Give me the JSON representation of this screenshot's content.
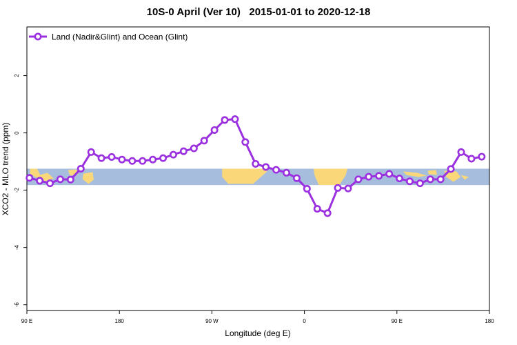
{
  "chart_data": {
    "type": "line",
    "title": "10S-0 April (Ver 10)   2015-01-01 to 2020-12-18",
    "xlabel": "Longitude (deg E)",
    "ylabel": "XCO2 - MLO trend (ppm)",
    "x_tick_labels": [
      "90 E",
      "180",
      "90 W",
      "0",
      "90 E",
      "180"
    ],
    "y_tick_labels": [
      "-6",
      "-4",
      "-2",
      "0",
      "2"
    ],
    "ylim": [
      -6.2,
      3.7
    ],
    "legend_position": "top-left",
    "grid": false,
    "colors": {
      "series": "#9b30e0",
      "ocean": "#a7bddd",
      "land": "#fad87a"
    },
    "series": [
      {
        "name": "Land (Nadir&Glint) and Ocean (Glint)",
        "x": [
          -267.5,
          -257.5,
          -247.5,
          -237.5,
          -227.5,
          -217.5,
          -207.5,
          -197.5,
          -187.5,
          -177.5,
          -167.5,
          -157.5,
          -147.5,
          -137.5,
          -127.5,
          -117.5,
          -107.5,
          -97.5,
          -87.5,
          -77.5,
          -67.5,
          -57.5,
          -47.5,
          -37.5,
          -27.5,
          -17.5,
          -7.5,
          2.5,
          12.5,
          22.5,
          32.5,
          42.5,
          52.5,
          62.5,
          72.5,
          82.5,
          92.5,
          102.5,
          112.5,
          122.5,
          132.5,
          142.5,
          152.5,
          162.5,
          172.5
        ],
        "y": [
          -1.57,
          -1.67,
          -1.76,
          -1.62,
          -1.63,
          -1.25,
          -0.67,
          -0.88,
          -0.84,
          -0.93,
          -0.98,
          -0.98,
          -0.93,
          -0.88,
          -0.76,
          -0.64,
          -0.54,
          -0.27,
          0.1,
          0.45,
          0.48,
          -0.32,
          -1.08,
          -1.19,
          -1.29,
          -1.39,
          -1.58,
          -1.95,
          -2.65,
          -2.8,
          -1.92,
          -1.94,
          -1.62,
          -1.53,
          -1.5,
          -1.43,
          -1.59,
          -1.69,
          -1.76,
          -1.62,
          -1.62,
          -1.26,
          -0.67,
          -0.9,
          -0.83
        ]
      }
    ]
  },
  "background_band": {
    "y_top": -1.25,
    "y_bottom": -1.82,
    "lon_start": -270,
    "lon_end": 180
  }
}
